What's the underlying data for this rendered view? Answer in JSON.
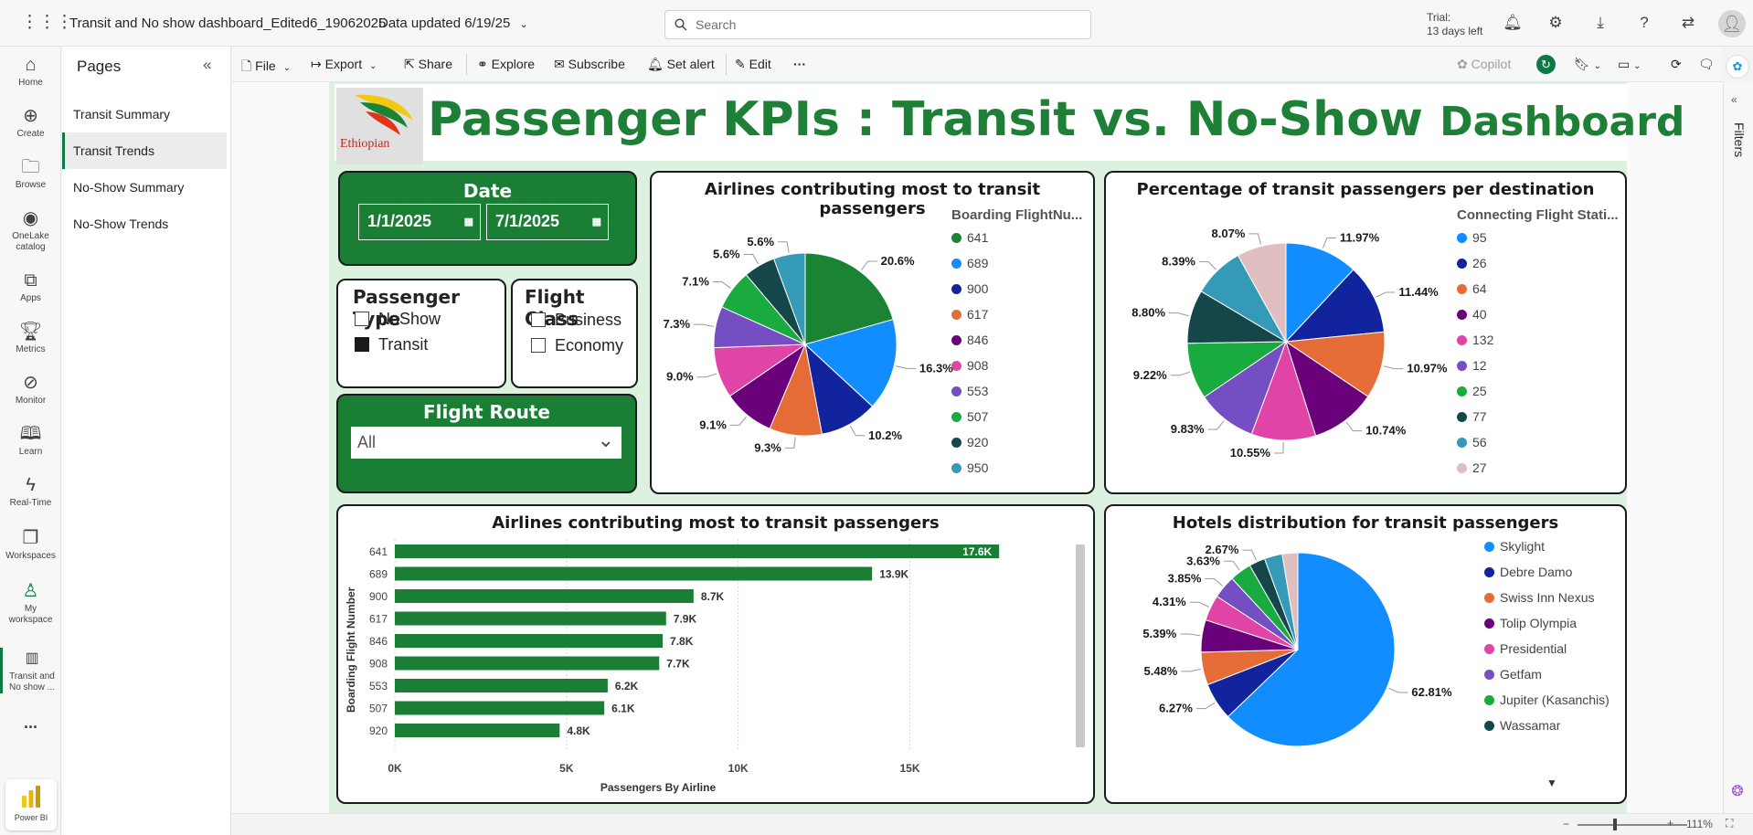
{
  "topbar": {
    "report_name": "Transit and No show dashboard_Edited6_19062025",
    "data_updated": "Data updated 6/19/25",
    "search_placeholder": "Search",
    "trial_line1": "Trial:",
    "trial_line2": "13 days left"
  },
  "rail": [
    {
      "label": "Home",
      "icon": "home-icon"
    },
    {
      "label": "Create",
      "icon": "plus-circle-icon"
    },
    {
      "label": "Browse",
      "icon": "folder-icon"
    },
    {
      "label": "OneLake catalog",
      "icon": "onelake-icon"
    },
    {
      "label": "Apps",
      "icon": "apps-icon"
    },
    {
      "label": "Metrics",
      "icon": "trophy-icon"
    },
    {
      "label": "Monitor",
      "icon": "monitor-icon"
    },
    {
      "label": "Learn",
      "icon": "book-icon"
    },
    {
      "label": "Real-Time",
      "icon": "lightning-icon"
    },
    {
      "label": "Workspaces",
      "icon": "workspaces-icon"
    },
    {
      "label": "My workspace",
      "icon": "person-icon"
    },
    {
      "label": "Transit and No show ...",
      "icon": "report-icon"
    }
  ],
  "rail_more": "...",
  "rail_brand": "Power BI",
  "pages": {
    "heading": "Pages",
    "items": [
      "Transit Summary",
      "Transit Trends",
      "No-Show Summary",
      "No-Show Trends"
    ],
    "selected_index": 1
  },
  "toolbar": {
    "file": "File",
    "export": "Export",
    "share": "Share",
    "explore": "Explore",
    "subscribe": "Subscribe",
    "set_alert": "Set alert",
    "edit": "Edit",
    "more": "···",
    "copilot": "Copilot"
  },
  "filters_pane": "Filters",
  "report": {
    "logo_text": "Ethiopian",
    "title_main": "Passenger KPIs : Transit vs. No-Show ",
    "title_end": "Dashboard",
    "date": {
      "title": "Date",
      "start": "1/1/2025",
      "end": "7/1/2025"
    },
    "passenger_type": {
      "title": "Passenger Type",
      "options": [
        {
          "label": "NoShow",
          "checked": false
        },
        {
          "label": "Transit",
          "checked": true
        }
      ]
    },
    "flight_class": {
      "title": "Flight Class",
      "options": [
        {
          "label": "Business",
          "checked": false
        },
        {
          "label": "Economy",
          "checked": false
        }
      ]
    },
    "flight_route": {
      "title": "Flight Route",
      "value": "All"
    }
  },
  "chart_data": [
    {
      "type": "pie",
      "title": "Airlines contributing most to transit passengers",
      "legend_title": "Boarding FlightNu...",
      "categories": [
        "641",
        "689",
        "900",
        "617",
        "846",
        "908",
        "553",
        "507",
        "920",
        "950"
      ],
      "values": [
        20.6,
        16.3,
        10.2,
        9.3,
        9.1,
        9.0,
        7.3,
        7.1,
        5.6,
        5.6
      ],
      "labels": [
        "20.6%",
        "16.3%",
        "10.2%",
        "9.3%",
        "9.1%",
        "9.0%",
        "7.3%",
        "7.1%",
        "5.6%",
        "5.6%"
      ],
      "colors": [
        "#1a8434",
        "#118dff",
        "#12239e",
        "#e66c37",
        "#6b007b",
        "#e044a7",
        "#744ec2",
        "#1aab40",
        "#15474a",
        "#3599b8"
      ]
    },
    {
      "type": "pie",
      "title": "Percentage of transit passengers per destination",
      "legend_title": "Connecting Flight Stati...",
      "categories": [
        "95",
        "26",
        "64",
        "40",
        "132",
        "12",
        "25",
        "77",
        "56",
        "27"
      ],
      "values": [
        11.97,
        11.44,
        10.97,
        10.74,
        10.55,
        9.83,
        9.22,
        8.8,
        8.39,
        8.07
      ],
      "labels": [
        "11.97%",
        "11.44%",
        "10.97%",
        "10.74%",
        "10.55%",
        "9.83%",
        "9.22%",
        "8.80%",
        "8.39%",
        "8.07%"
      ],
      "colors": [
        "#118dff",
        "#12239e",
        "#e66c37",
        "#6b007b",
        "#e044a7",
        "#744ec2",
        "#1aab40",
        "#15474a",
        "#3599b8",
        "#dfbfbf"
      ]
    },
    {
      "type": "bar",
      "title": "Airlines contributing most to transit passengers",
      "xlabel": "Passengers By Airline",
      "ylabel": "Boarding Flight Number",
      "categories": [
        "641",
        "689",
        "900",
        "617",
        "846",
        "908",
        "553",
        "507",
        "920"
      ],
      "values": [
        17600,
        13900,
        8700,
        7900,
        7800,
        7700,
        6200,
        6100,
        4800
      ],
      "labels": [
        "17.6K",
        "13.9K",
        "8.7K",
        "7.9K",
        "7.8K",
        "7.7K",
        "6.2K",
        "6.1K",
        "4.8K"
      ],
      "xticks": [
        "0K",
        "5K",
        "10K",
        "15K"
      ],
      "xlim": [
        0,
        18500
      ],
      "color": "#1a7f34",
      "grid": true
    },
    {
      "type": "pie",
      "title": "Hotels distribution for transit passengers",
      "categories": [
        "Skylight",
        "Debre Damo",
        "Swiss Inn Nexus",
        "Tolip Olympia",
        "Presidential",
        "Getfam",
        "Jupiter (Kasanchis)",
        "Wassamar",
        "",
        ""
      ],
      "values": [
        62.81,
        6.27,
        5.48,
        5.39,
        4.31,
        3.85,
        3.63,
        2.67,
        3.0,
        2.59
      ],
      "labels": [
        "62.81%",
        "6.27%",
        "5.48%",
        "5.39%",
        "4.31%",
        "3.85%",
        "3.63%",
        "2.67%",
        "",
        ""
      ],
      "colors": [
        "#118dff",
        "#12239e",
        "#e66c37",
        "#6b007b",
        "#e044a7",
        "#744ec2",
        "#1aab40",
        "#15474a",
        "#3599b8",
        "#dfbfbf"
      ]
    }
  ],
  "status": {
    "zoom": "111%"
  }
}
